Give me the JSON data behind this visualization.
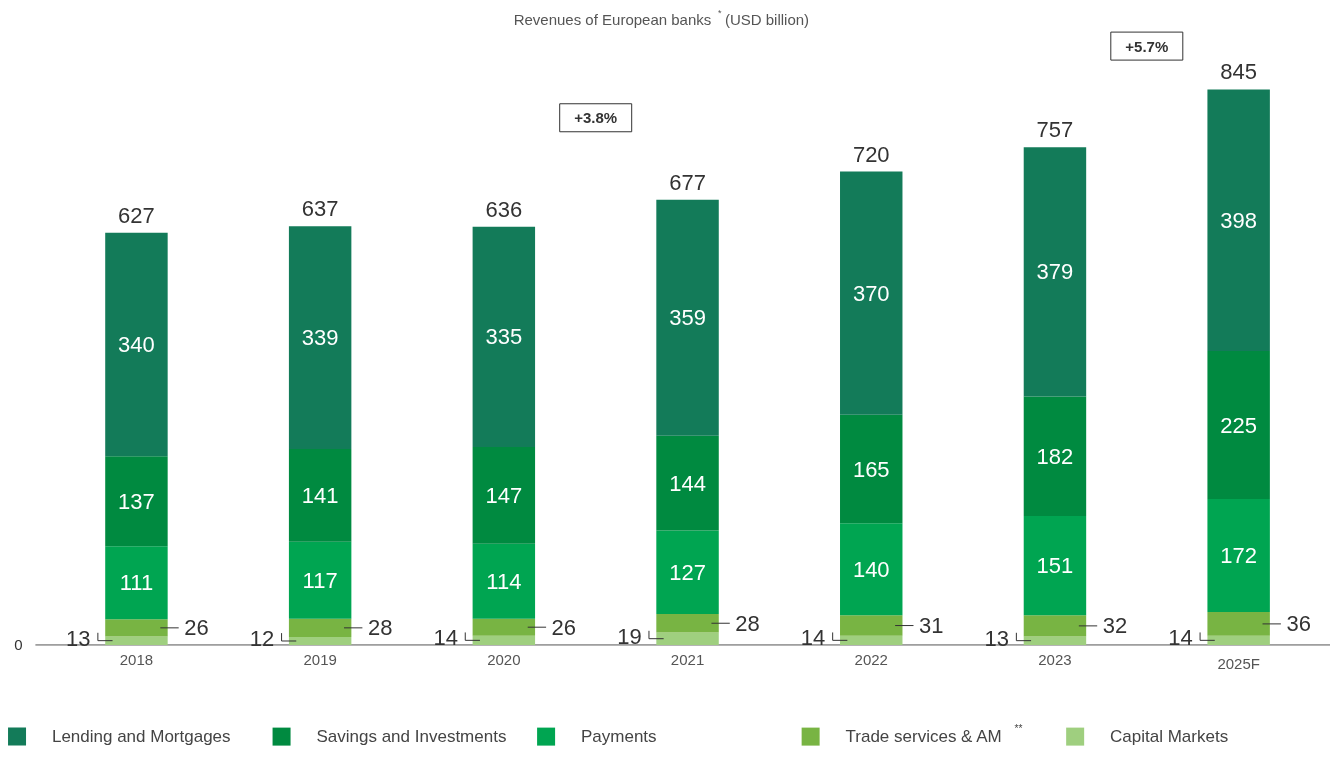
{
  "chart_data": {
    "type": "bar",
    "stacked": true,
    "title": "Revenues of European banks$^{*}$ (USD billion)",
    "categories": [
      "2018",
      "2019",
      "2020",
      "2021",
      "2022",
      "2023",
      "2025F"
    ],
    "series": [
      {
        "name": "Capital Markets",
        "color": "#9fcf7f",
        "values": [
          13,
          12,
          14,
          19,
          14,
          13,
          14
        ]
      },
      {
        "name": "Trade services & AM$^{**}$",
        "color": "#78b443",
        "values": [
          26,
          28,
          26,
          28,
          31,
          32,
          36
        ]
      },
      {
        "name": "Payments",
        "color": "#00a551",
        "values": [
          111,
          117,
          114,
          127,
          140,
          151,
          172
        ]
      },
      {
        "name": "Savings and Investments",
        "color": "#008a40",
        "values": [
          137,
          141,
          147,
          144,
          165,
          182,
          225
        ]
      },
      {
        "name": "Lending and Mortgages",
        "color": "#137b59",
        "values": [
          340,
          339,
          335,
          359,
          370,
          379,
          398
        ]
      }
    ],
    "totals": [
      "627",
      "637",
      "636",
      "677",
      "720",
      "757",
      "845"
    ],
    "data_labels": true,
    "annotations": [
      "+3.8%",
      "+5.7%",
      "0"
    ],
    "grid": false,
    "legend": "bottom"
  }
}
